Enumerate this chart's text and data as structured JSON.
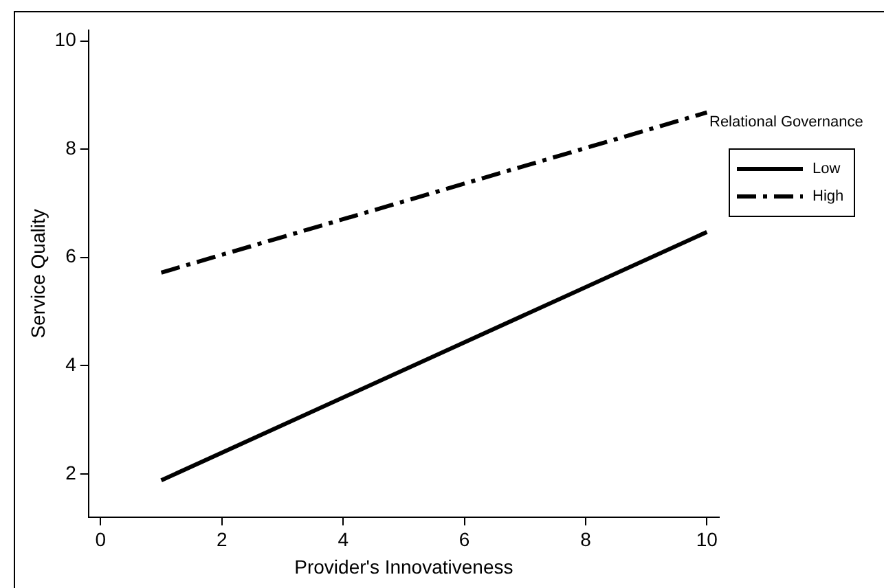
{
  "chart_data": {
    "type": "line",
    "xlabel": "Provider's Innovativeness",
    "ylabel": "Service Quality",
    "legend_title": "Relational Governance",
    "legend": "right",
    "grid": false,
    "marker": "none",
    "x": [
      1,
      10
    ],
    "xlim": [
      -0.2,
      10.2
    ],
    "xticks": [
      0,
      2,
      4,
      6,
      8,
      10
    ],
    "ylim": [
      1.2,
      10.2
    ],
    "yticks": [
      2,
      4,
      6,
      8,
      10
    ],
    "series": [
      {
        "name": "Low",
        "color": "#000000",
        "line_style": "solid",
        "values": [
          1.88,
          6.47
        ]
      },
      {
        "name": "High",
        "color": "#000000",
        "line_style": "dashdot",
        "values": [
          5.72,
          8.68
        ]
      }
    ]
  }
}
